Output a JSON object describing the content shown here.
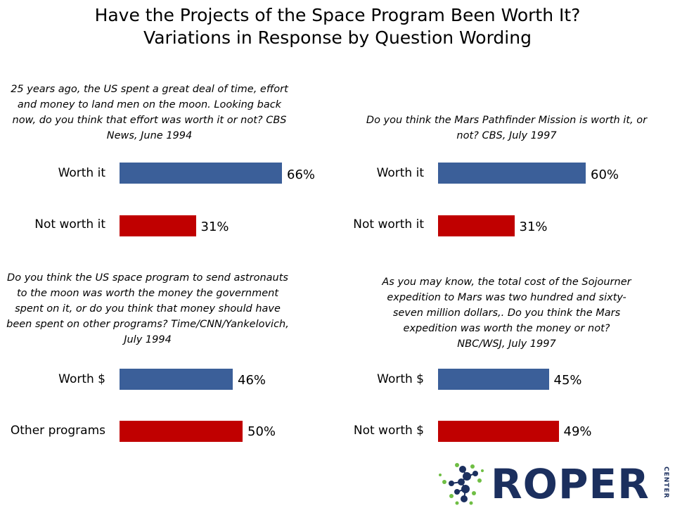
{
  "title_line1": "Have the Projects of the Space Program Been Worth It?",
  "title_line2": "Variations in Response by Question Wording",
  "colors": {
    "blue": "#3b5f99",
    "red": "#c00000"
  },
  "chart_data": [
    {
      "type": "bar",
      "orientation": "horizontal",
      "question": "25 years ago, the US spent a great deal of time, effort and money to land men on the moon. Looking back now, do you think that effort was worth it or not? CBS News, June 1994",
      "categories": [
        "Worth it",
        "Not worth it"
      ],
      "values": [
        66,
        31
      ],
      "labels": [
        "66%",
        "31%"
      ],
      "colors": [
        "#3b5f99",
        "#c00000"
      ]
    },
    {
      "type": "bar",
      "orientation": "horizontal",
      "question": "Do you think the Mars  Pathfinder Mission is worth it, or not? CBS, July 1997",
      "categories": [
        "Worth it",
        "Not worth it"
      ],
      "values": [
        60,
        31
      ],
      "labels": [
        "60%",
        "31%"
      ],
      "colors": [
        "#3b5f99",
        "#c00000"
      ]
    },
    {
      "type": "bar",
      "orientation": "horizontal",
      "question": "Do you think the US space program to send astronauts to the moon was worth the money the government spent on it, or do you think that money should have been spent on other programs? Time/CNN/Yankelovich, July 1994",
      "categories": [
        "Worth $",
        "Other programs"
      ],
      "values": [
        46,
        50
      ],
      "labels": [
        "46%",
        "50%"
      ],
      "colors": [
        "#3b5f99",
        "#c00000"
      ]
    },
    {
      "type": "bar",
      "orientation": "horizontal",
      "question": "As you may know, the total cost of the Sojourner expedition to Mars was two hundred and sixty-seven million dollars,. Do you think the Mars expedition was worth the money or not? NBC/WSJ, July 1997",
      "categories": [
        "Worth $",
        "Not worth $"
      ],
      "values": [
        45,
        49
      ],
      "labels": [
        "45%",
        "49%"
      ],
      "colors": [
        "#3b5f99",
        "#c00000"
      ]
    }
  ],
  "logo": {
    "name": "ROPER",
    "sub": "CENTER"
  }
}
